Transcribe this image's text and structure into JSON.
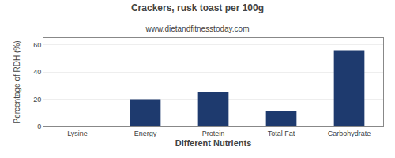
{
  "chart_data": {
    "type": "bar",
    "title": "Crackers, rusk toast per 100g",
    "subtitle": "www.dietandfitnesstoday.com",
    "xlabel": "Different Nutrients",
    "ylabel": "Percentage of RDH (%)",
    "categories": [
      "Lysine",
      "Energy",
      "Protein",
      "Total Fat",
      "Carbohydrate"
    ],
    "values": [
      0.3,
      20.0,
      25.0,
      11.0,
      56.0
    ],
    "color": "#1e3a6e",
    "ylim": [
      0,
      65
    ],
    "yticks": [
      0,
      20,
      40,
      60
    ],
    "grid": true
  }
}
